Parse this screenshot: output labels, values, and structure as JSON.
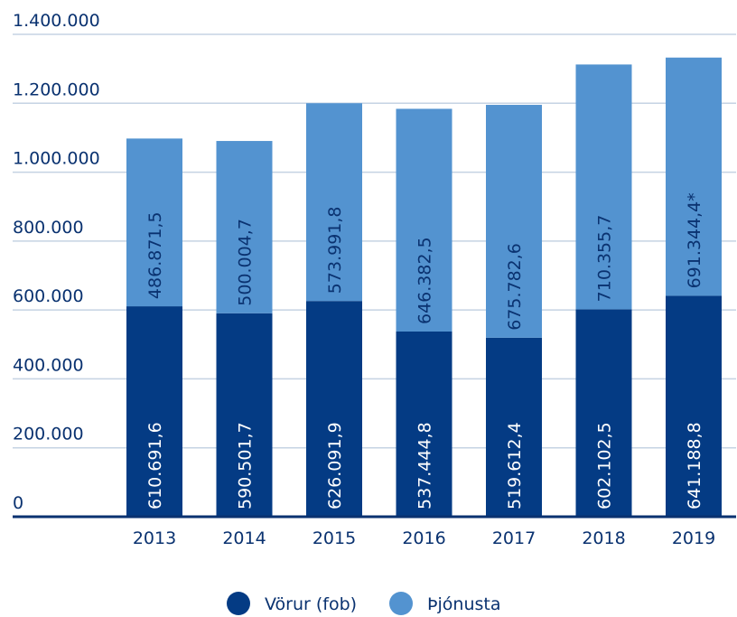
{
  "chart_data": {
    "type": "bar",
    "stacked": true,
    "categories": [
      "2013",
      "2014",
      "2015",
      "2016",
      "2017",
      "2018",
      "2019"
    ],
    "series": [
      {
        "name": "Vörur (fob)",
        "color": "#043b84",
        "values": [
          610691.6,
          590501.7,
          626091.9,
          537444.8,
          519612.4,
          602102.5,
          641188.8
        ],
        "value_labels": [
          "610.691,6",
          "590.501,7",
          "626.091,9",
          "537.444,8",
          "519.612,4",
          "602.102,5",
          "641.188,8"
        ]
      },
      {
        "name": "Þjónusta",
        "color": "#5393d0",
        "values": [
          486871.5,
          500004.7,
          573991.8,
          646382.5,
          675782.6,
          710355.7,
          691344.4
        ],
        "value_labels": [
          "486.871,5",
          "500.004,7",
          "573.991,8",
          "646.382,5",
          "675.782,6",
          "710.355,7",
          "691.344,4*"
        ]
      }
    ],
    "ylim": [
      0,
      1400000
    ],
    "yticks": [
      0,
      {
        "value": 200000,
        "label": "200.000"
      },
      {
        "value": 400000,
        "label": "400.000"
      },
      {
        "value": 600000,
        "label": "600.000"
      },
      {
        "value": 800000,
        "label": "800.000"
      },
      {
        "value": 1000000,
        "label": "1.000.000"
      },
      {
        "value": 1200000,
        "label": "1.200.000"
      },
      {
        "value": 1400000,
        "label": "1.400.000"
      }
    ],
    "grid": true,
    "legend": "bottom"
  }
}
